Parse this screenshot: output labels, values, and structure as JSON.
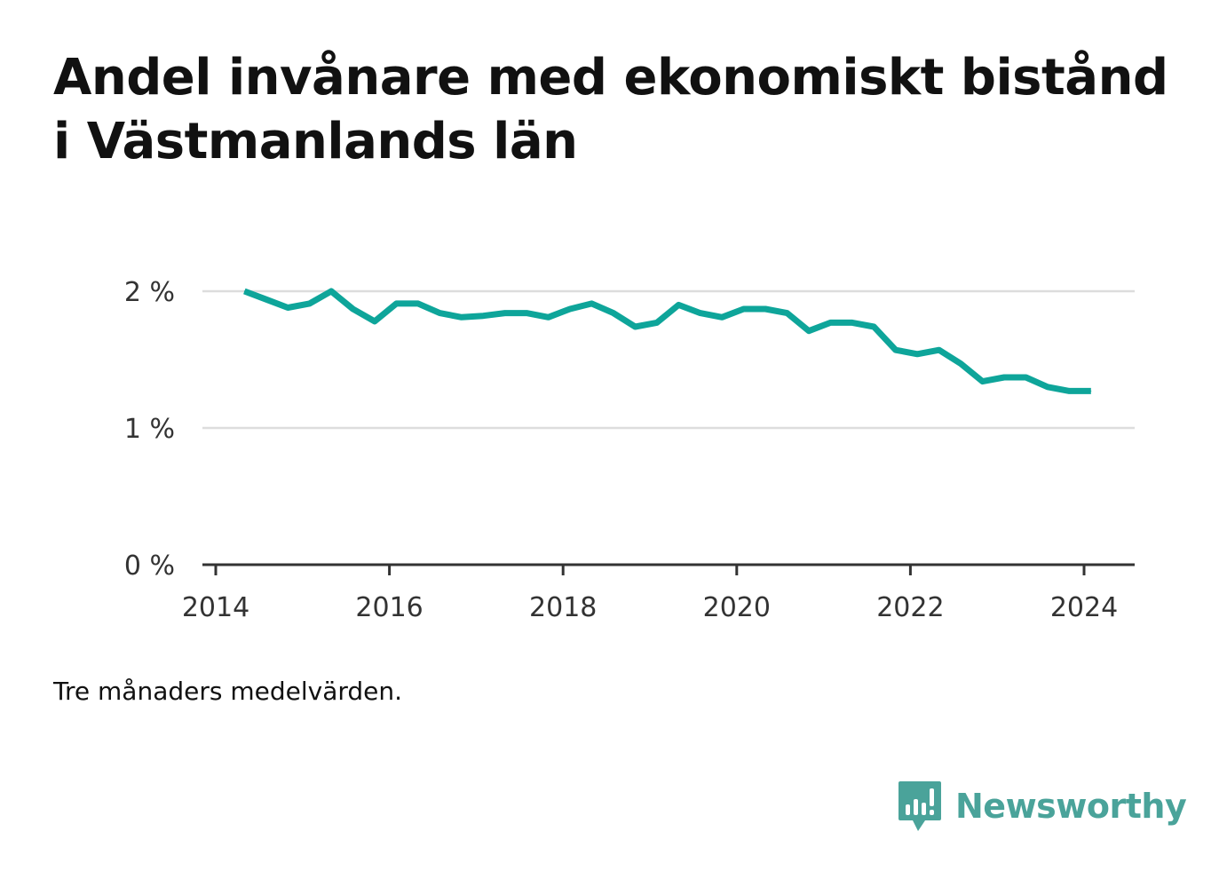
{
  "title": "Andel invånare med ekonomiskt bistånd i Västmanlands län",
  "note": "Tre månaders medelvärden.",
  "brand": {
    "name": "Newsworthy",
    "icon": "newsworthy-logo-icon"
  },
  "colors": {
    "line": "#0ea59a",
    "brand": "#4aa39a",
    "grid": "#dddddd",
    "axis": "#333333",
    "text": "#111111"
  },
  "chart_data": {
    "type": "line",
    "title": "Andel invånare med ekonomiskt bistånd i Västmanlands län",
    "xlabel": "",
    "ylabel": "",
    "x_ticks": [
      "2014",
      "2016",
      "2018",
      "2020",
      "2022",
      "2024"
    ],
    "y_ticks": [
      "0 %",
      "1 %",
      "2 %"
    ],
    "ylim": [
      0,
      2
    ],
    "grid": true,
    "series": [
      {
        "x": [
          2014.33,
          2014.58,
          2014.83,
          2015.08,
          2015.33,
          2015.58,
          2015.83,
          2016.08,
          2016.33,
          2016.58,
          2016.83,
          2017.08,
          2017.33,
          2017.58,
          2017.83,
          2018.08,
          2018.33,
          2018.58,
          2018.83,
          2019.08,
          2019.33,
          2019.58,
          2019.83,
          2020.08,
          2020.33,
          2020.58,
          2020.83,
          2021.08,
          2021.33,
          2021.58,
          2021.83,
          2022.08,
          2022.33,
          2022.58,
          2022.83,
          2023.08,
          2023.33,
          2023.58,
          2023.83,
          2024.08
        ],
        "y": [
          2.0,
          1.94,
          1.88,
          1.91,
          2.0,
          1.87,
          1.78,
          1.91,
          1.91,
          1.84,
          1.81,
          1.82,
          1.84,
          1.84,
          1.81,
          1.87,
          1.91,
          1.84,
          1.74,
          1.77,
          1.9,
          1.84,
          1.81,
          1.87,
          1.87,
          1.84,
          1.71,
          1.77,
          1.77,
          1.74,
          1.57,
          1.54,
          1.57,
          1.47,
          1.34,
          1.37,
          1.37,
          1.3,
          1.27,
          1.27
        ]
      }
    ]
  }
}
